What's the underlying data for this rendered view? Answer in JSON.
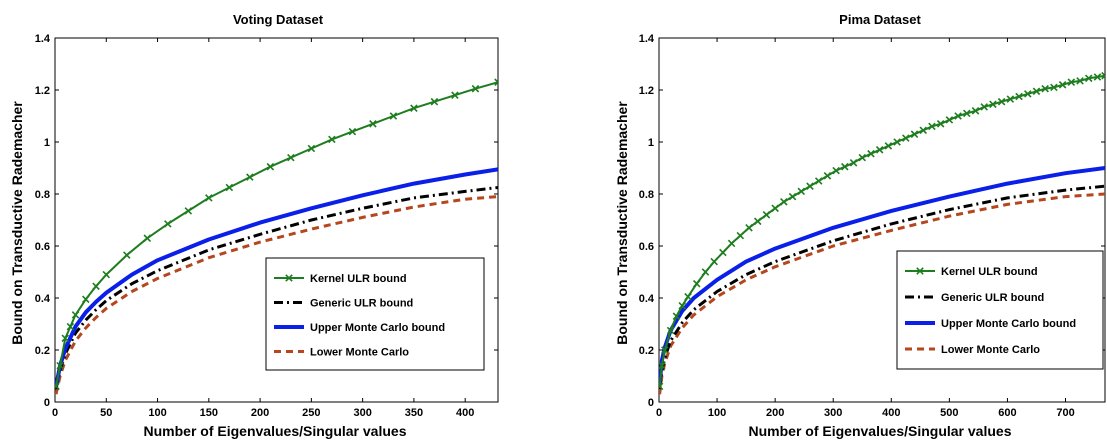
{
  "chart_data": [
    {
      "type": "line",
      "title": "Voting Dataset",
      "xlabel": "Number of Eigenvalues/Singular values",
      "ylabel": "Bound on Transductive Rademacher",
      "xlim": [
        0,
        432
      ],
      "ylim": [
        0,
        1.4
      ],
      "xticks": [
        0,
        50,
        100,
        150,
        200,
        250,
        300,
        350,
        400
      ],
      "yticks": [
        0,
        0.2,
        0.4,
        0.6,
        0.8,
        1,
        1.2,
        1.4
      ],
      "xticklabels": [
        "0",
        "50",
        "100",
        "150",
        "200",
        "250",
        "300",
        "350",
        "400"
      ],
      "yticklabels": [
        "0",
        "0.2",
        "0.4",
        "0.6",
        "0.8",
        "1",
        "1.2",
        "1.4"
      ],
      "grid": false,
      "legend_position": "lower-right",
      "series": [
        {
          "name": "Kernel ULR bound",
          "color": "#1e7d1e",
          "style": "solid-x-markers",
          "x": [
            1,
            5,
            10,
            15,
            20,
            30,
            40,
            50,
            70,
            90,
            110,
            130,
            150,
            170,
            190,
            210,
            230,
            250,
            270,
            290,
            310,
            330,
            350,
            370,
            390,
            410,
            432
          ],
          "y": [
            0.06,
            0.14,
            0.245,
            0.29,
            0.335,
            0.395,
            0.445,
            0.49,
            0.565,
            0.63,
            0.685,
            0.735,
            0.785,
            0.825,
            0.865,
            0.905,
            0.94,
            0.975,
            1.01,
            1.04,
            1.07,
            1.1,
            1.13,
            1.155,
            1.18,
            1.205,
            1.23
          ]
        },
        {
          "name": "Generic ULR bound",
          "color": "#000000",
          "style": "dash-dot",
          "x": [
            1,
            5,
            10,
            20,
            30,
            40,
            50,
            75,
            100,
            150,
            200,
            250,
            300,
            350,
            400,
            432
          ],
          "y": [
            0.05,
            0.12,
            0.185,
            0.265,
            0.315,
            0.355,
            0.39,
            0.455,
            0.505,
            0.585,
            0.645,
            0.7,
            0.745,
            0.785,
            0.81,
            0.825
          ]
        },
        {
          "name": "Upper Monte Carlo bound",
          "color": "#0a1fe8",
          "style": "solid-thick",
          "x": [
            1,
            5,
            10,
            20,
            30,
            40,
            50,
            75,
            100,
            150,
            200,
            250,
            300,
            350,
            400,
            432
          ],
          "y": [
            0.06,
            0.14,
            0.205,
            0.29,
            0.345,
            0.385,
            0.42,
            0.49,
            0.545,
            0.625,
            0.69,
            0.745,
            0.795,
            0.84,
            0.875,
            0.895
          ]
        },
        {
          "name": "Lower Monte Carlo",
          "color": "#b5461e",
          "style": "dashed",
          "x": [
            1,
            5,
            10,
            20,
            30,
            40,
            50,
            75,
            100,
            150,
            200,
            250,
            300,
            350,
            400,
            432
          ],
          "y": [
            0.03,
            0.1,
            0.16,
            0.235,
            0.285,
            0.325,
            0.36,
            0.425,
            0.475,
            0.555,
            0.615,
            0.665,
            0.71,
            0.75,
            0.78,
            0.79
          ]
        }
      ]
    },
    {
      "type": "line",
      "title": "Pima Dataset",
      "xlabel": "Number of Eigenvalues/Singular values",
      "ylabel": "Bound on Transductive Rademacher",
      "xlim": [
        0,
        768
      ],
      "ylim": [
        0,
        1.4
      ],
      "xticks": [
        0,
        100,
        200,
        300,
        400,
        500,
        600,
        700
      ],
      "yticks": [
        0,
        0.2,
        0.4,
        0.6,
        0.8,
        1,
        1.2,
        1.4
      ],
      "xticklabels": [
        "0",
        "100",
        "200",
        "300",
        "400",
        "500",
        "600",
        "700"
      ],
      "yticklabels": [
        "0",
        "0.2",
        "0.4",
        "0.6",
        "0.8",
        "1",
        "1.2",
        "1.4"
      ],
      "grid": false,
      "legend_position": "lower-right",
      "series": [
        {
          "name": "Kernel ULR bound",
          "color": "#1e7d1e",
          "style": "solid-x-markers",
          "x": [
            1,
            5,
            10,
            20,
            30,
            40,
            50,
            65,
            80,
            95,
            110,
            125,
            140,
            155,
            170,
            185,
            200,
            215,
            230,
            245,
            260,
            275,
            290,
            305,
            320,
            335,
            350,
            365,
            380,
            395,
            410,
            425,
            440,
            455,
            470,
            485,
            500,
            515,
            530,
            545,
            560,
            575,
            590,
            605,
            620,
            635,
            650,
            665,
            680,
            695,
            710,
            725,
            740,
            755,
            768
          ],
          "y": [
            0.06,
            0.14,
            0.2,
            0.275,
            0.33,
            0.37,
            0.405,
            0.455,
            0.5,
            0.54,
            0.575,
            0.61,
            0.64,
            0.67,
            0.695,
            0.72,
            0.745,
            0.77,
            0.79,
            0.81,
            0.83,
            0.85,
            0.87,
            0.89,
            0.905,
            0.92,
            0.94,
            0.955,
            0.97,
            0.985,
            1.0,
            1.015,
            1.03,
            1.045,
            1.06,
            1.07,
            1.085,
            1.1,
            1.11,
            1.12,
            1.135,
            1.145,
            1.155,
            1.165,
            1.175,
            1.185,
            1.195,
            1.205,
            1.21,
            1.22,
            1.23,
            1.235,
            1.245,
            1.25,
            1.255
          ]
        },
        {
          "name": "Generic ULR bound",
          "color": "#000000",
          "style": "dash-dot",
          "x": [
            1,
            5,
            10,
            20,
            40,
            60,
            100,
            150,
            200,
            300,
            400,
            500,
            600,
            700,
            768
          ],
          "y": [
            0.05,
            0.12,
            0.17,
            0.235,
            0.305,
            0.355,
            0.425,
            0.49,
            0.54,
            0.62,
            0.685,
            0.74,
            0.785,
            0.815,
            0.83
          ]
        },
        {
          "name": "Upper Monte Carlo bound",
          "color": "#0a1fe8",
          "style": "solid-thick",
          "x": [
            1,
            5,
            10,
            20,
            40,
            60,
            100,
            150,
            200,
            300,
            400,
            500,
            600,
            700,
            768
          ],
          "y": [
            0.07,
            0.16,
            0.21,
            0.275,
            0.35,
            0.4,
            0.47,
            0.54,
            0.59,
            0.67,
            0.735,
            0.79,
            0.84,
            0.88,
            0.9
          ]
        },
        {
          "name": "Lower Monte Carlo",
          "color": "#b5461e",
          "style": "dashed",
          "x": [
            1,
            5,
            10,
            20,
            40,
            60,
            100,
            150,
            200,
            300,
            400,
            500,
            600,
            700,
            768
          ],
          "y": [
            0.03,
            0.1,
            0.15,
            0.215,
            0.285,
            0.335,
            0.405,
            0.47,
            0.52,
            0.6,
            0.66,
            0.715,
            0.76,
            0.79,
            0.8
          ]
        }
      ]
    }
  ]
}
